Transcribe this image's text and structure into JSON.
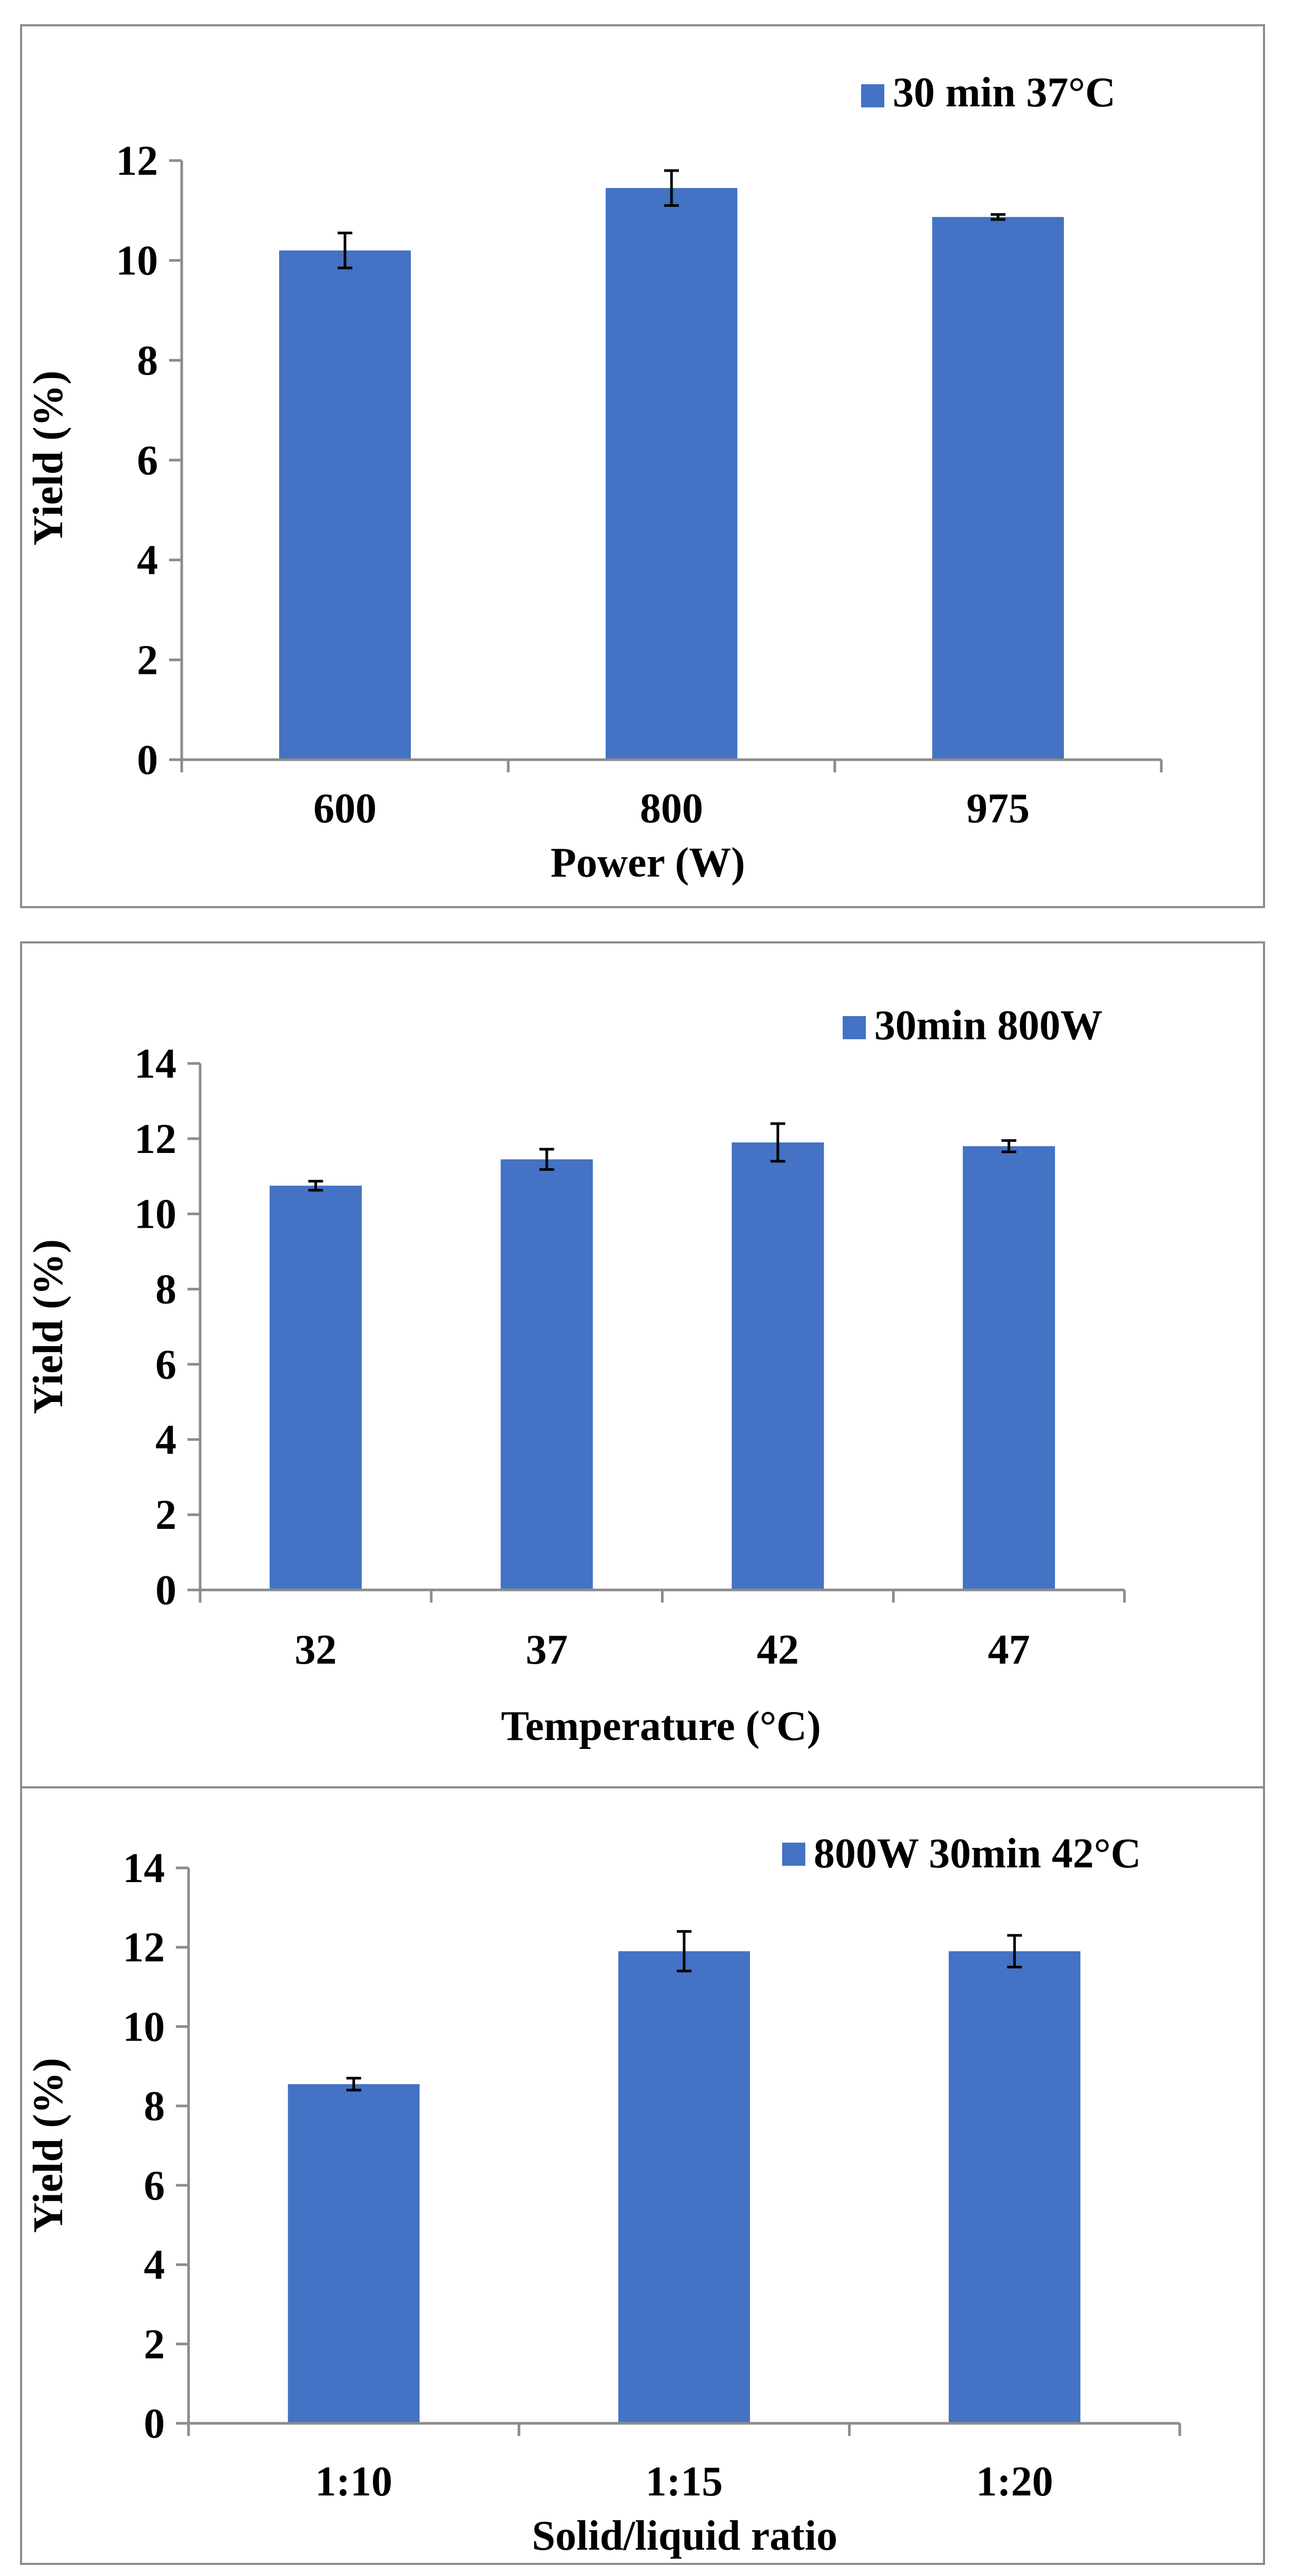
{
  "chart_data": [
    {
      "type": "bar",
      "title": "",
      "xlabel": "Power  (W)",
      "ylabel": "Yield (%)",
      "categories": [
        "600",
        "800",
        "975"
      ],
      "series": [
        {
          "name": "30 min 37°C",
          "values": [
            10.2,
            11.45,
            10.87
          ],
          "errors": [
            0.35,
            0.35,
            0.05
          ]
        }
      ],
      "ylim": [
        0,
        12
      ],
      "yticks": [
        0,
        2,
        4,
        6,
        8,
        10,
        12
      ],
      "grid": false,
      "legend": "top-right",
      "color": "#4472C4"
    },
    {
      "type": "bar",
      "title": "",
      "xlabel": "Temperature (°C)",
      "ylabel": "Yield (%)",
      "categories": [
        "32",
        "37",
        "42",
        "47"
      ],
      "series": [
        {
          "name": "30min 800W",
          "values": [
            10.75,
            11.45,
            11.9,
            11.8
          ],
          "errors": [
            0.12,
            0.27,
            0.5,
            0.15
          ]
        }
      ],
      "ylim": [
        0,
        14
      ],
      "yticks": [
        0,
        2,
        4,
        6,
        8,
        10,
        12,
        14
      ],
      "grid": false,
      "legend": "top-right",
      "color": "#4472C4"
    },
    {
      "type": "bar",
      "title": "",
      "xlabel": "Solid/liquid ratio",
      "ylabel": "Yield (%)",
      "categories": [
        "1:10",
        "1:15",
        "1:20"
      ],
      "series": [
        {
          "name": "800W 30min 42°C",
          "values": [
            8.55,
            11.9,
            11.9
          ],
          "errors": [
            0.15,
            0.5,
            0.4
          ]
        }
      ],
      "ylim": [
        0,
        14
      ],
      "yticks": [
        0,
        2,
        4,
        6,
        8,
        10,
        12,
        14
      ],
      "grid": false,
      "legend": "top-right",
      "color": "#4472C4"
    }
  ]
}
